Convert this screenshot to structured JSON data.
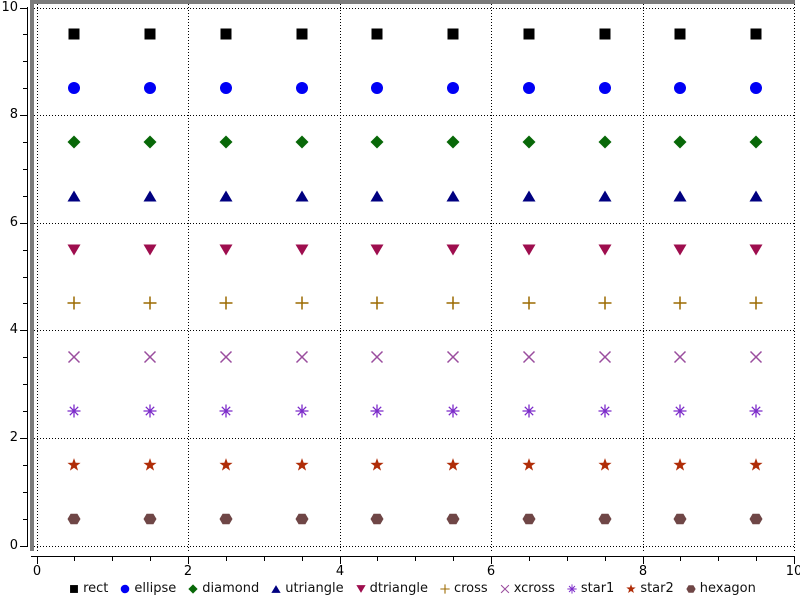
{
  "chart_data": {
    "type": "scatter",
    "title": "",
    "xlabel": "",
    "ylabel": "",
    "xlim": [
      0,
      10
    ],
    "ylim": [
      0,
      10
    ],
    "x_major_ticks": [
      0,
      2,
      4,
      6,
      8,
      10
    ],
    "y_major_ticks": [
      0,
      2,
      4,
      6,
      8,
      10
    ],
    "x_tick_labels": [
      "0",
      "2",
      "4",
      "6",
      "8",
      "10"
    ],
    "y_tick_labels": [
      "0",
      "2",
      "4",
      "6",
      "8",
      "10"
    ],
    "minor_tick_step": 0.5,
    "grid": {
      "style": "dotted",
      "color": "#000000",
      "at_major_ticks": true
    },
    "x_values": [
      0.5,
      1.5,
      2.5,
      3.5,
      4.5,
      5.5,
      6.5,
      7.5,
      8.5,
      9.5
    ],
    "series": [
      {
        "name": "rect",
        "marker": "rect",
        "color": "#000000",
        "y": 9.5
      },
      {
        "name": "ellipse",
        "marker": "ellipse",
        "color": "#0000f5",
        "y": 8.5
      },
      {
        "name": "diamond",
        "marker": "diamond",
        "color": "#086808",
        "y": 7.5
      },
      {
        "name": "utriangle",
        "marker": "utriangle",
        "color": "#000080",
        "y": 6.5
      },
      {
        "name": "dtriangle",
        "marker": "dtriangle",
        "color": "#9e0e4e",
        "y": 5.5
      },
      {
        "name": "cross",
        "marker": "cross",
        "color": "#9c6a00",
        "y": 4.5
      },
      {
        "name": "xcross",
        "marker": "xcross",
        "color": "#9a4d9e",
        "y": 3.5
      },
      {
        "name": "star1",
        "marker": "star1",
        "color": "#7c2bca",
        "y": 2.5
      },
      {
        "name": "star2",
        "marker": "star2",
        "color": "#b02d08",
        "y": 1.5
      },
      {
        "name": "hexagon",
        "marker": "hexagon",
        "color": "#6f4646",
        "y": 0.5
      }
    ]
  },
  "legend": {
    "items": [
      {
        "label": "rect",
        "marker": "rect",
        "color": "#000000"
      },
      {
        "label": "ellipse",
        "marker": "ellipse",
        "color": "#0000f5"
      },
      {
        "label": "diamond",
        "marker": "diamond",
        "color": "#086808"
      },
      {
        "label": "utriangle",
        "marker": "utriangle",
        "color": "#000080"
      },
      {
        "label": "dtriangle",
        "marker": "dtriangle",
        "color": "#9e0e4e"
      },
      {
        "label": "cross",
        "marker": "cross",
        "color": "#9c6a00"
      },
      {
        "label": "xcross",
        "marker": "xcross",
        "color": "#9a4d9e"
      },
      {
        "label": "star1",
        "marker": "star1",
        "color": "#7c2bca"
      },
      {
        "label": "star2",
        "marker": "star2",
        "color": "#b02d08"
      },
      {
        "label": "hexagon",
        "marker": "hexagon",
        "color": "#6f4646"
      }
    ]
  },
  "frame_color": "#7d7d7d"
}
